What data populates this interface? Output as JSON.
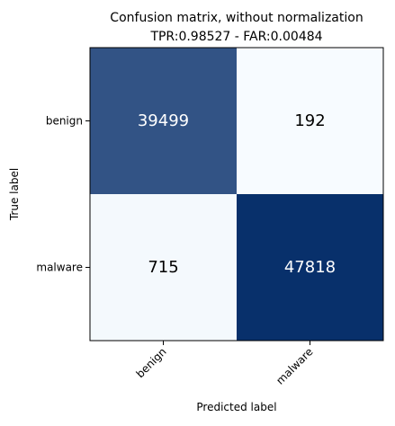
{
  "chart_data": {
    "type": "heatmap",
    "title_line1": "Confusion matrix, without normalization",
    "title_line2": "TPR:0.98527 - FAR:0.00484",
    "xlabel": "Predicted label",
    "ylabel": "True label",
    "x_categories": [
      "benign",
      "malware"
    ],
    "y_categories": [
      "benign",
      "malware"
    ],
    "values": [
      [
        39499,
        192
      ],
      [
        715,
        47818
      ]
    ],
    "colormap": {
      "low": "#f7fbff",
      "high": "#08306b"
    },
    "text_color_dark_cell": "#ffffff",
    "text_color_light_cell": "#000000",
    "grid": false,
    "legend": "none"
  }
}
